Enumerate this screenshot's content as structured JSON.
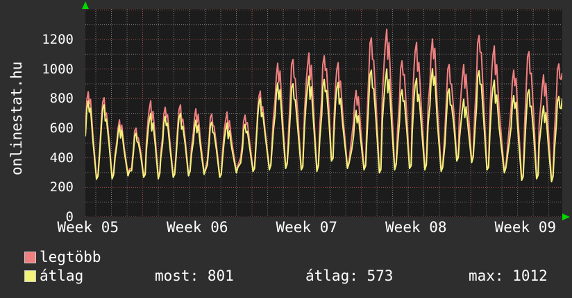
{
  "branding": {
    "site": "onlinestat.hu"
  },
  "stats": [
    {
      "label": "most",
      "value": 801,
      "text": "most: 801"
    },
    {
      "label": "átlag",
      "value": 573,
      "text": "átlag: 573"
    },
    {
      "label": "max",
      "value": 1012,
      "text": "max: 1012"
    }
  ],
  "colors": {
    "outer_background": "#2e2e2e",
    "plot_background": "#1c1c1c",
    "text": "#ffffff",
    "minor_grid": "#7d7d7d",
    "major_grid": "#a84f4f",
    "axis_arrow": "#00d800",
    "legend_swatch_border": "#c8c8c8"
  },
  "chart_data": {
    "type": "line",
    "title": "",
    "xlabel": "",
    "ylabel": "",
    "legend_position": "bottom-left",
    "grid": {
      "on": true,
      "minor_step": 100,
      "major_step": 200,
      "minor_color": "#7d7d7d",
      "major_color": "#a84f4f"
    },
    "y_axis": {
      "ticks": [
        0,
        200,
        400,
        600,
        800,
        1000,
        1200
      ],
      "ylim": [
        0,
        1406
      ]
    },
    "x_axis": {
      "tick_labels": [
        "Week 05",
        "Week 06",
        "Week 07",
        "Week 08",
        "Week 09"
      ],
      "tick_centers_days": [
        0.167,
        7.167,
        14.167,
        21.167,
        28.167
      ],
      "week_boundary_days": [
        3.667,
        10.667,
        17.667,
        24.667
      ],
      "first_day_gridline": 0.667,
      "days_total": 30.53
    },
    "peak_times_days": [
      0.18,
      1.2,
      2.18,
      3.24,
      4.18,
      5.11,
      6.09,
      7.07,
      8.09,
      9.07,
      10.22,
      11.2,
      12.31,
      13.29,
      14.31,
      15.29,
      16.18,
      17.33,
      18.31,
      19.29,
      20.27,
      21.2,
      22.22,
      23.29,
      24.22,
      25.2,
      26.18,
      27.42,
      28.4,
      29.33,
      30.31
    ],
    "trough_values": [
      267,
      270,
      290,
      280,
      270,
      280,
      290,
      300,
      280,
      310,
      320,
      330,
      340,
      330,
      320,
      390,
      340,
      330,
      310,
      330,
      340,
      330,
      320,
      390,
      380,
      330,
      310,
      260,
      270,
      250
    ],
    "series": [
      {
        "name": "legtöbb",
        "color": "#f08080",
        "start": 560,
        "end": 975,
        "peaks": [
          847,
          806,
          656,
          601,
          785,
          742,
          758,
          731,
          695,
          710,
          688,
          851,
          1039,
          1065,
          1109,
          1090,
          1043,
          855,
          1211,
          1269,
          1055,
          1180,
          1203,
          1031,
          1031,
          1227,
          1156,
          992,
          1117,
          961,
          1035
        ],
        "trough_offset": 0
      },
      {
        "name": "átlag",
        "color": "#f2f279",
        "start": 545,
        "end": 801,
        "peaks": [
          784,
          759,
          619,
          566,
          700,
          680,
          700,
          655,
          640,
          635,
          625,
          805,
          906,
          900,
          953,
          930,
          910,
          720,
          992,
          1000,
          860,
          937,
          1002,
          866,
          796,
          989,
          925,
          820,
          860,
          750,
          814
        ],
        "trough_offset": -12
      }
    ],
    "stats_line": {
      "most": 801,
      "átlag": 573,
      "max": 1012
    }
  }
}
